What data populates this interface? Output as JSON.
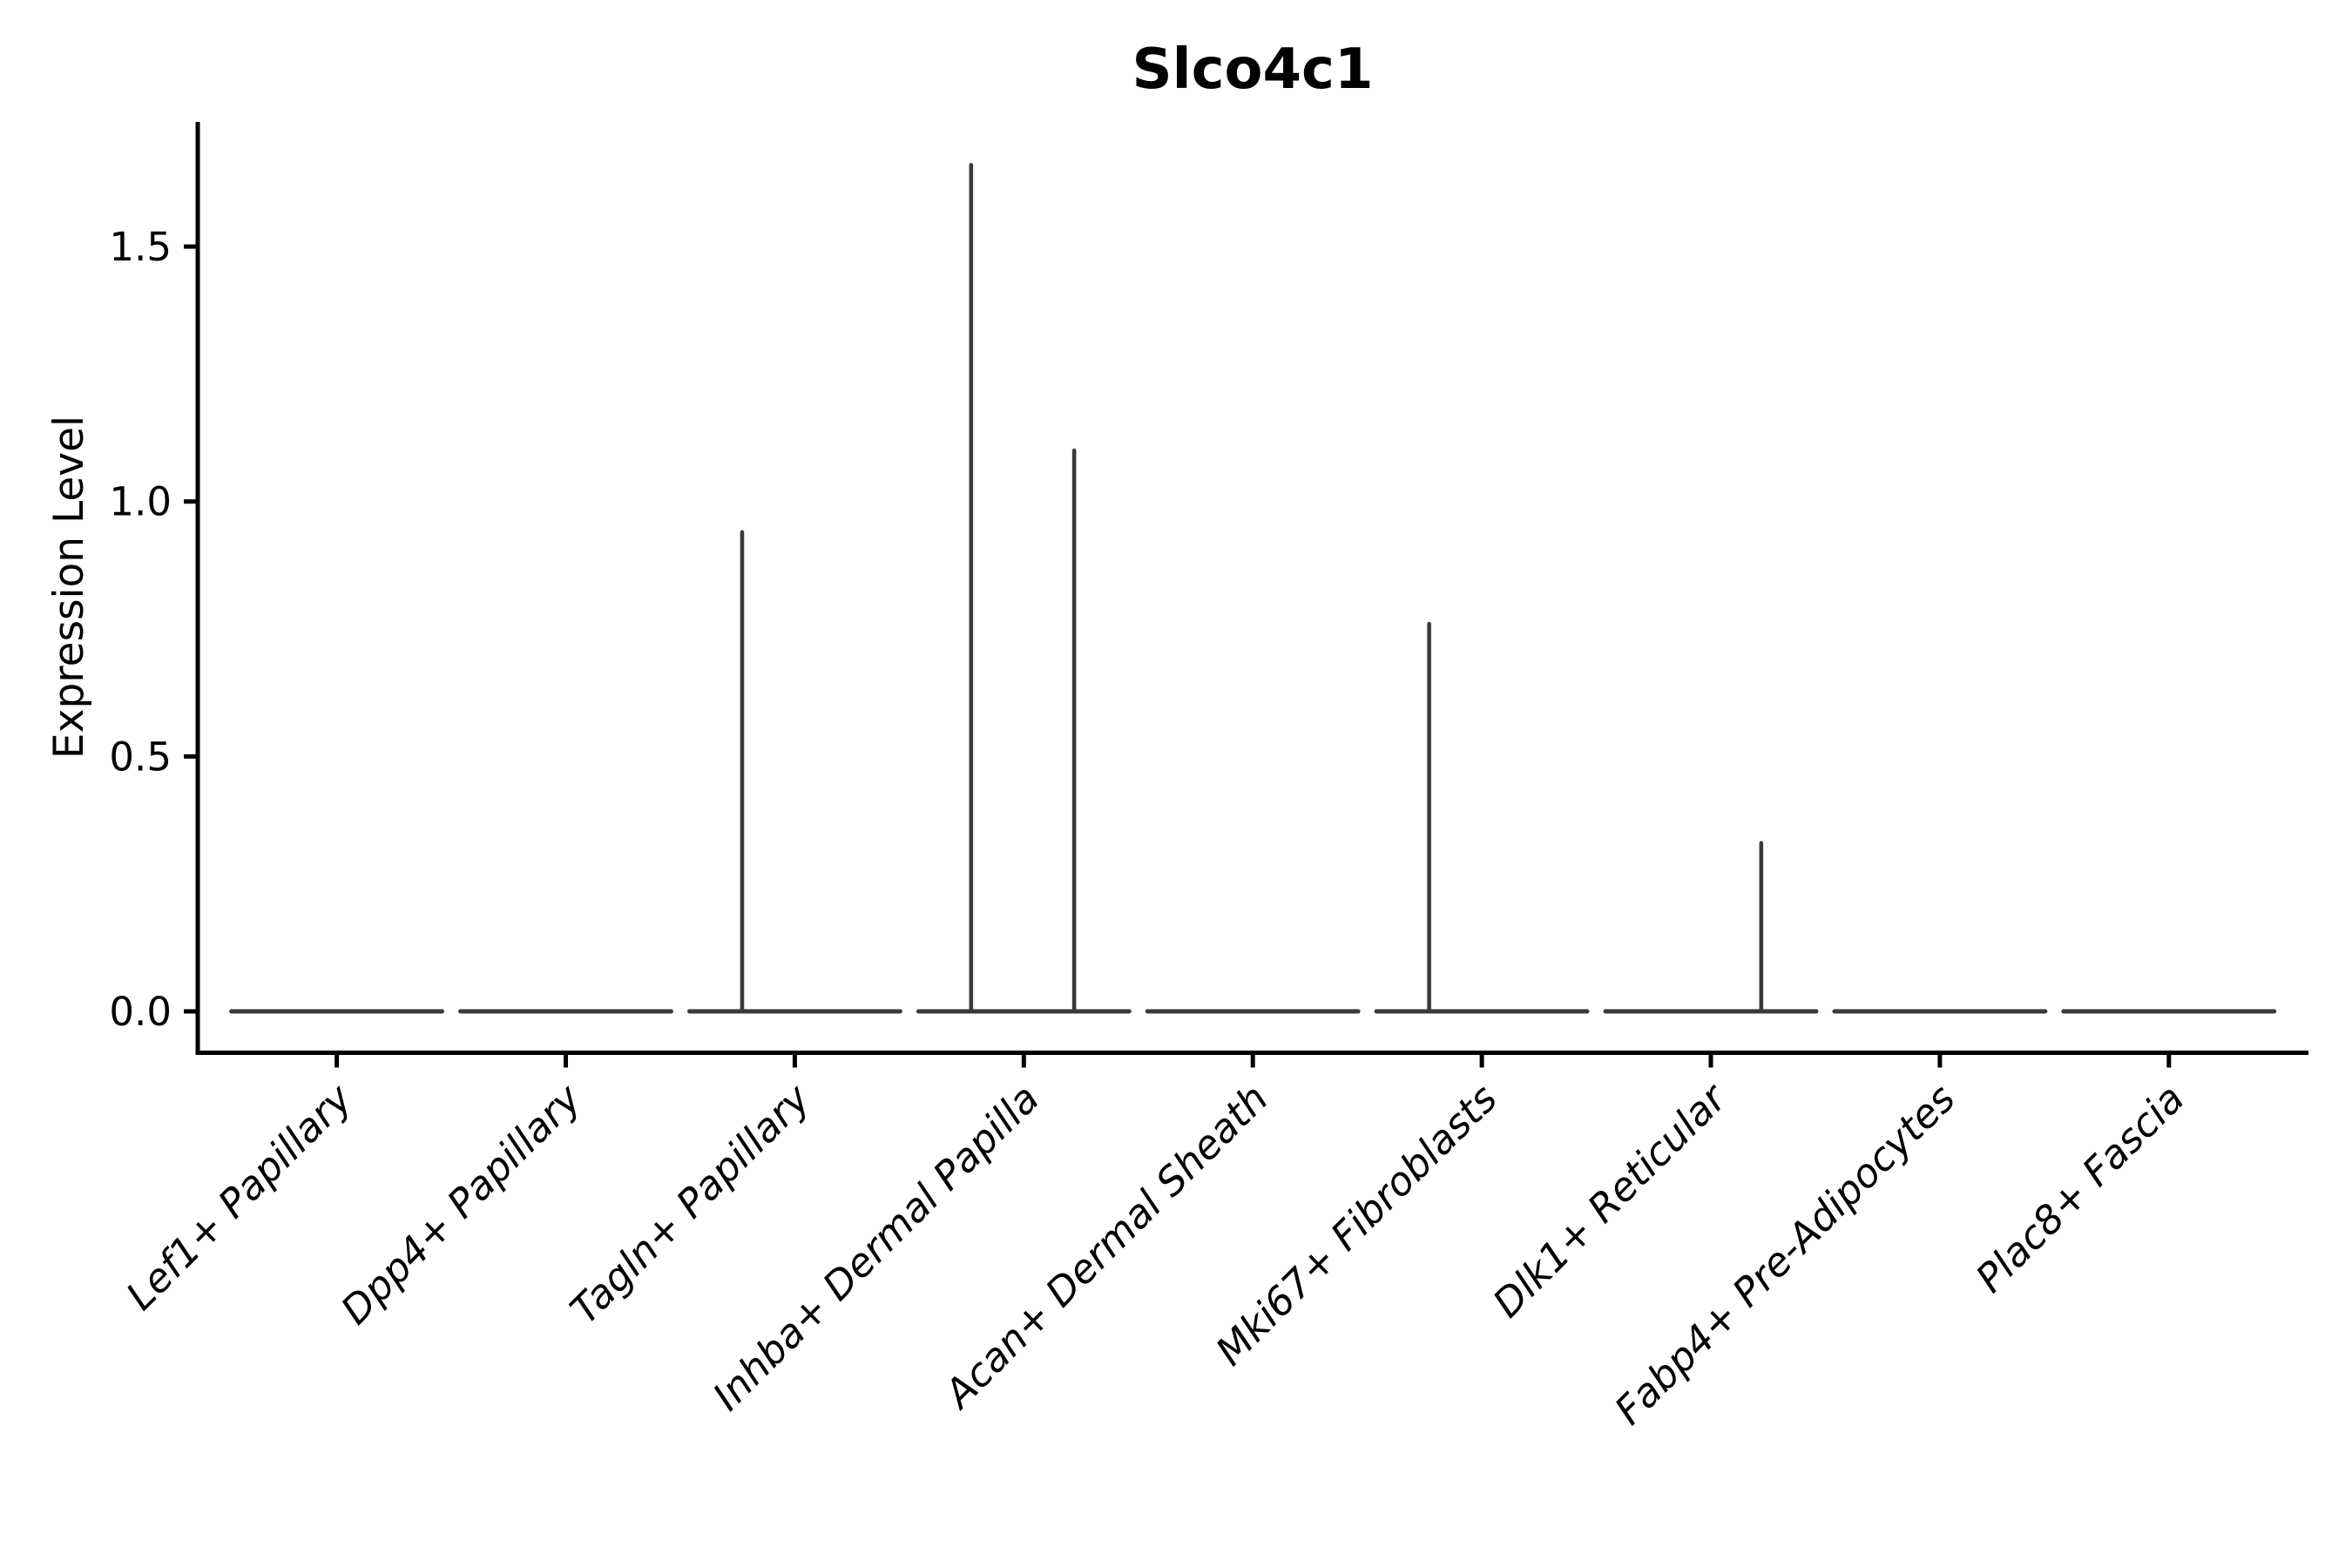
{
  "title": "Slco4c1",
  "y_axis": {
    "label": "Expression Level",
    "tick_labels": [
      "0.0",
      "0.5",
      "1.0",
      "1.5"
    ]
  },
  "chart_data": {
    "type": "violin",
    "title": "Slco4c1",
    "xlabel": "",
    "ylabel": "Expression Level",
    "categories": [
      "Lef1+ Papillary",
      "Dpp4+ Papillary",
      "Tagln+ Papillary",
      "Inhba+ Dermal Papilla",
      "Acan+ Dermal Sheath",
      "Mki67+ Fibroblasts",
      "Dlk1+ Reticular",
      "Fabp4+ Pre-Adipocytes",
      "Plac8+ Fascia"
    ],
    "yticks": [
      0.0,
      0.5,
      1.0,
      1.5
    ],
    "ylim": [
      -0.08,
      1.74
    ],
    "grid": false,
    "legend": "none",
    "x_tick_rotation_deg": 45,
    "x_tick_style": "italic",
    "violins": [
      {
        "category": "Lef1+ Papillary",
        "baseline": 0,
        "body_halfwidth_frac": 0.46,
        "spikes": []
      },
      {
        "category": "Dpp4+ Papillary",
        "baseline": 0,
        "body_halfwidth_frac": 0.46,
        "spikes": []
      },
      {
        "category": "Tagln+ Papillary",
        "baseline": 0,
        "body_halfwidth_frac": 0.46,
        "spikes": [
          {
            "offset_frac": -0.23,
            "value": 0.94
          }
        ]
      },
      {
        "category": "Inhba+ Dermal Papilla",
        "baseline": 0,
        "body_halfwidth_frac": 0.46,
        "spikes": [
          {
            "offset_frac": -0.23,
            "value": 1.66
          },
          {
            "offset_frac": 0.22,
            "value": 1.1
          }
        ]
      },
      {
        "category": "Acan+ Dermal Sheath",
        "baseline": 0,
        "body_halfwidth_frac": 0.46,
        "spikes": []
      },
      {
        "category": "Mki67+ Fibroblasts",
        "baseline": 0,
        "body_halfwidth_frac": 0.46,
        "spikes": [
          {
            "offset_frac": -0.23,
            "value": 0.76
          }
        ]
      },
      {
        "category": "Dlk1+ Reticular",
        "baseline": 0,
        "body_halfwidth_frac": 0.46,
        "spikes": [
          {
            "offset_frac": 0.22,
            "value": 0.33
          }
        ]
      },
      {
        "category": "Fabp4+ Pre-Adipocytes",
        "baseline": 0,
        "body_halfwidth_frac": 0.46,
        "spikes": []
      },
      {
        "category": "Plac8+ Fascia",
        "baseline": 0,
        "body_halfwidth_frac": 0.46,
        "spikes": []
      }
    ],
    "colors": {
      "violin": "#3a3a3a",
      "axis": "#000000",
      "text": "#000000",
      "background": "#ffffff"
    }
  }
}
